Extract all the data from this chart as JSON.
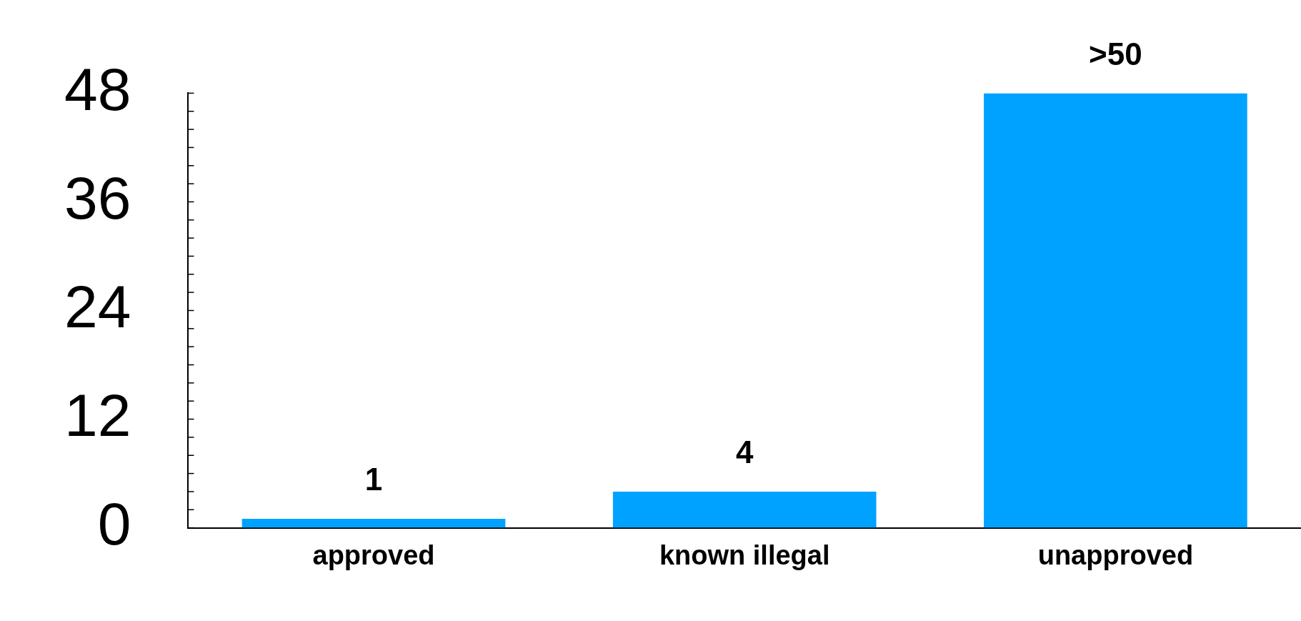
{
  "chart_data": {
    "type": "bar",
    "categories": [
      "approved",
      "known illegal",
      "unapproved"
    ],
    "values": [
      1,
      4,
      48
    ],
    "value_labels": [
      "1",
      "4",
      ">50"
    ],
    "color": "#00a2ff",
    "ylim": [
      0,
      48
    ],
    "yticks": [
      0,
      {
        "value": 2,
        "label": null
      },
      {
        "value": 4,
        "label": null
      },
      {
        "value": 6,
        "label": null
      },
      {
        "value": 8,
        "label": null
      },
      {
        "value": 10,
        "label": null
      },
      12,
      {
        "value": 14,
        "label": null
      },
      {
        "value": 16,
        "label": null
      },
      {
        "value": 18,
        "label": null
      },
      {
        "value": 20,
        "label": null
      },
      {
        "value": 22,
        "label": null
      },
      24,
      {
        "value": 26,
        "label": null
      },
      {
        "value": 28,
        "label": null
      },
      {
        "value": 30,
        "label": null
      },
      {
        "value": 32,
        "label": null
      },
      {
        "value": 34,
        "label": null
      },
      36,
      {
        "value": 38,
        "label": null
      },
      {
        "value": 40,
        "label": null
      },
      {
        "value": 42,
        "label": null
      },
      {
        "value": 44,
        "label": null
      },
      {
        "value": 46,
        "label": null
      },
      48
    ],
    "grid": false
  }
}
